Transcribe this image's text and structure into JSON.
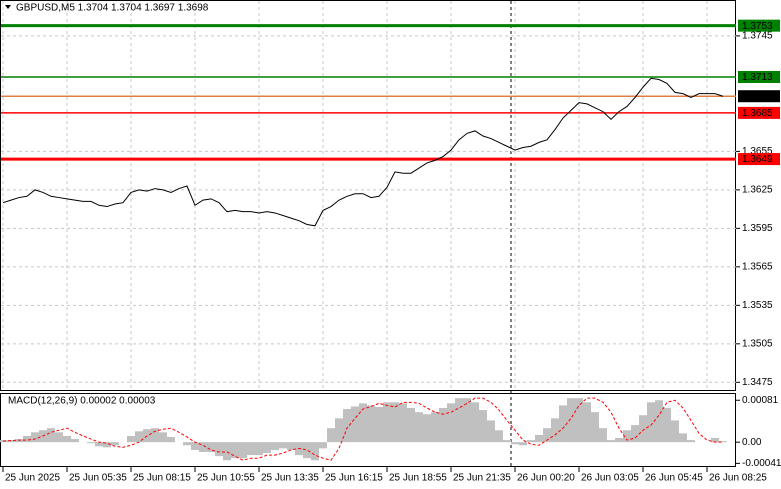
{
  "chart_data": [
    {
      "type": "line",
      "title": "GBPUSD,M5  1.3704 1.3704 1.3697 1.3698",
      "categories": [
        "25 Jun 2025",
        null,
        null,
        null,
        null,
        null,
        null,
        null,
        "25 Jun 05:35",
        null,
        null,
        null,
        null,
        null,
        null,
        null,
        "25 Jun 08:15",
        null,
        null,
        null,
        null,
        null,
        null,
        null,
        "25 Jun 10:55",
        null,
        null,
        null,
        null,
        null,
        null,
        null,
        "25 Jun 13:35",
        null,
        null,
        null,
        null,
        null,
        null,
        null,
        "25 Jun 16:15",
        null,
        null,
        null,
        null,
        null,
        null,
        null,
        "25 Jun 18:55",
        null,
        null,
        null,
        null,
        null,
        null,
        null,
        "25 Jun 21:35",
        null,
        null,
        null,
        null,
        null,
        null,
        null,
        "26 Jun 00:20",
        null,
        null,
        null,
        null,
        null,
        null,
        null,
        "26 Jun 03:05",
        null,
        null,
        null,
        null,
        null,
        null,
        null,
        "26 Jun 05:45",
        null,
        null,
        null,
        null,
        null,
        null,
        null,
        "26 Jun 08:25",
        null,
        null
      ],
      "series": [
        {
          "color": "#000000",
          "values": [
            1.3615,
            1.3617,
            1.3619,
            1.362,
            1.3625,
            1.3623,
            1.362,
            1.3619,
            1.3618,
            1.3617,
            1.3616,
            1.3616,
            1.3613,
            1.3612,
            1.3614,
            1.3615,
            1.3623,
            1.3625,
            1.3624,
            1.3626,
            1.3625,
            1.3623,
            1.3626,
            1.3628,
            1.3613,
            1.3617,
            1.3618,
            1.3615,
            1.3608,
            1.3609,
            1.3608,
            1.3608,
            1.3607,
            1.3608,
            1.3607,
            1.3605,
            1.3603,
            1.3601,
            1.3598,
            1.3597,
            1.3609,
            1.3612,
            1.3617,
            1.362,
            1.3622,
            1.3622,
            1.3619,
            1.362,
            1.3627,
            1.3639,
            1.3638,
            1.3638,
            1.3642,
            1.3646,
            1.3648,
            1.3651,
            1.3656,
            1.3664,
            1.3669,
            1.3671,
            1.3667,
            1.3665,
            1.3662,
            1.3659,
            1.3656,
            1.3658,
            1.3659,
            1.3662,
            1.3664,
            1.3672,
            1.3681,
            1.3687,
            1.3693,
            1.3692,
            1.3689,
            1.3686,
            1.368,
            1.3686,
            1.369,
            1.3697,
            1.3705,
            1.3712,
            1.3711,
            1.3708,
            1.3701,
            1.37,
            1.3697,
            1.37,
            1.37,
            1.37,
            1.3698
          ]
        }
      ],
      "ylim": [
        1.3469,
        1.3773
      ],
      "yticks": [
        1.3745,
        1.3655,
        1.3625,
        1.3595,
        1.3565,
        1.3535,
        1.3505,
        1.3475
      ],
      "grid": true,
      "hlines": [
        {
          "value": 1.3753,
          "color": "#008000",
          "box": "#008000",
          "thick": true
        },
        {
          "value": 1.3713,
          "color": "#008000",
          "box": "#008000",
          "thick": false
        },
        {
          "value": 1.3698,
          "color": "#e08040",
          "box": "#000000",
          "thick": false
        },
        {
          "value": 1.3685,
          "color": "#ff0000",
          "box": "#ff0000",
          "thick": false
        },
        {
          "value": 1.3649,
          "color": "#ff0000",
          "box": "#ff0000",
          "thick": true
        }
      ]
    },
    {
      "type": "macd",
      "title": "MACD(12,26,9) 0.00002 0.00003",
      "series": [
        {
          "type": "bar",
          "color": "#c0c0c0",
          "values": [
            4e-05,
            4e-05,
            6e-05,
            0.00012,
            0.00019,
            0.00023,
            0.00027,
            0.00019,
            0.00012,
            6e-05,
            0,
            -2e-05,
            -8e-05,
            -0.0001,
            -6e-05,
            0,
            0.00012,
            0.00021,
            0.00025,
            0.00027,
            0.00019,
            0.0001,
            0,
            -6e-05,
            -0.00015,
            -0.00019,
            -0.00019,
            -0.00027,
            -0.00035,
            -0.00031,
            -0.00031,
            -0.00025,
            -0.00025,
            -0.00021,
            -0.00015,
            -0.00012,
            -0.00015,
            -0.00025,
            -0.00031,
            -0.00035,
            -0.00012,
            0.00027,
            0.00046,
            0.00064,
            0.00069,
            0.00075,
            0.00071,
            0.00068,
            0.00077,
            0.00077,
            0.00075,
            0.00066,
            0.00058,
            0.00054,
            0.00058,
            0.00066,
            0.00075,
            0.00085,
            0.00085,
            0.00077,
            0.00062,
            0.00042,
            0.00023,
            4e-05,
            -4e-05,
            -6e-05,
            4e-05,
            0.00014,
            0.00027,
            0.00046,
            0.00071,
            0.00085,
            0.00085,
            0.00077,
            0.00058,
            0.00027,
            4e-05,
            8e-05,
            0.00023,
            0.00033,
            0.00052,
            0.00077,
            0.00081,
            0.00066,
            0.00042,
            0.00017,
            4e-05,
            0,
            0,
            8e-05,
            2e-05
          ]
        },
        {
          "type": "line",
          "color": "#ff0000",
          "values": [
            2e-05,
            3e-05,
            4e-05,
            4e-05,
            6e-05,
            0.00012,
            0.00019,
            0.00023,
            0.00027,
            0.00019,
            0.00012,
            6e-05,
            0,
            -2e-05,
            -8e-05,
            -0.0001,
            -6e-05,
            0,
            0.00012,
            0.00021,
            0.00025,
            0.00027,
            0.00019,
            0.0001,
            0,
            -6e-05,
            -0.00015,
            -0.00019,
            -0.00019,
            -0.00027,
            -0.00035,
            -0.00031,
            -0.00031,
            -0.00025,
            -0.00025,
            -0.00021,
            -0.00015,
            -0.00012,
            -0.00015,
            -0.00025,
            -0.00031,
            -0.00035,
            -0.00012,
            0.00027,
            0.00046,
            0.00064,
            0.00069,
            0.00075,
            0.00071,
            0.00068,
            0.00077,
            0.00077,
            0.00075,
            0.00066,
            0.00058,
            0.00054,
            0.00058,
            0.00066,
            0.00075,
            0.00085,
            0.00085,
            0.00077,
            0.00062,
            0.00042,
            0.00023,
            4e-05,
            -4e-05,
            -6e-05,
            4e-05,
            0.00014,
            0.00027,
            0.00046,
            0.00071,
            0.00085,
            0.00085,
            0.00077,
            0.00058,
            0.00027,
            4e-05,
            8e-05,
            0.00023,
            0.00033,
            0.00052,
            0.00077,
            0.00081,
            0.00066,
            0.00042,
            0.00017,
            4e-05,
            0,
            0
          ]
        }
      ],
      "ylim": [
        -0.00048,
        0.00095
      ],
      "yticks": [
        0.00081,
        {
          "value": 0,
          "label": "0.00"
        },
        -0.00041
      ]
    }
  ]
}
